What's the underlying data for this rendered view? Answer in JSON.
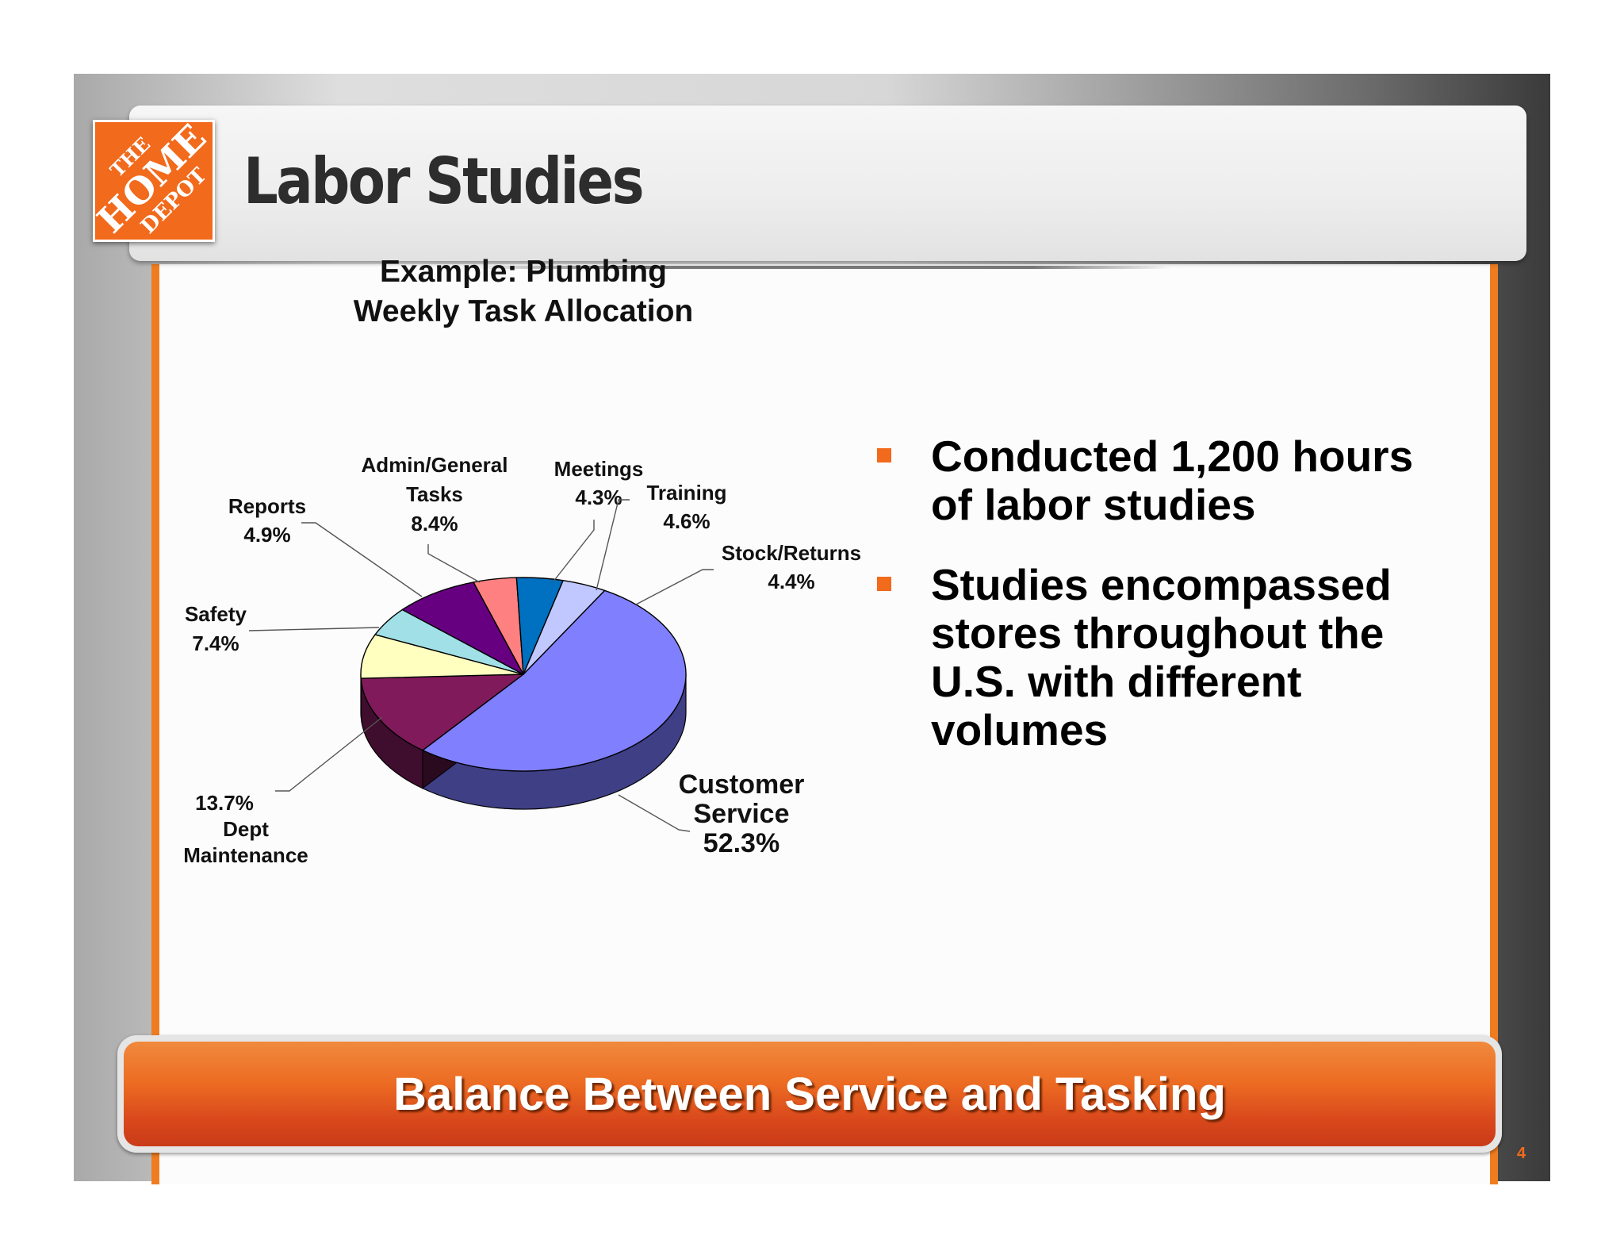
{
  "header": {
    "title": "Labor Studies",
    "logo_text": "THE HOME DEPOT",
    "logo_color": "#f26a1b"
  },
  "chart_data": {
    "type": "pie",
    "title": "Example: Plumbing Weekly Task Allocation",
    "title_lines": [
      "Example: Plumbing",
      "Weekly Task Allocation"
    ],
    "slices": [
      {
        "label": "Customer Service",
        "value": 52.3,
        "value_label": "52.3%",
        "color": "#8080ff",
        "side_color": "#3f3f86"
      },
      {
        "label": "Dept Maintenance",
        "value": 13.7,
        "value_label": "13.7%",
        "color": "#801a5a",
        "side_color": "#3f0d2d"
      },
      {
        "label": "Safety",
        "value": 7.4,
        "value_label": "7.4%",
        "color": "#ffffc0",
        "side_color": "#a3a37a"
      },
      {
        "label": "Reports",
        "value": 4.9,
        "value_label": "4.9%",
        "color": "#a0e0e6",
        "side_color": "#5f8f93"
      },
      {
        "label": "Admin/General Tasks",
        "value": 8.4,
        "value_label": "8.4%",
        "color": "#660080",
        "side_color": "#33003f"
      },
      {
        "label": "Meetings",
        "value": 4.3,
        "value_label": "4.3%",
        "color": "#ff8080",
        "side_color": "#994c4c"
      },
      {
        "label": "Training",
        "value": 4.6,
        "value_label": "4.6%",
        "color": "#0070c0",
        "side_color": "#003a66"
      },
      {
        "label": "Stock/Returns",
        "value": 4.4,
        "value_label": "4.4%",
        "color": "#c0c8ff",
        "side_color": "#7a80a3"
      }
    ],
    "label_lines": {
      "Customer Service": [
        "Customer",
        "Service",
        "52.3%"
      ],
      "Dept Maintenance": [
        "13.7%",
        "Dept",
        "Maintenance"
      ],
      "Safety": [
        "Safety",
        "7.4%"
      ],
      "Reports": [
        "Reports",
        "4.9%"
      ],
      "Admin/General Tasks": [
        "Admin/General",
        "Tasks",
        "8.4%"
      ],
      "Meetings": [
        "Meetings",
        "4.3%"
      ],
      "Training": [
        "Training",
        "4.6%"
      ],
      "Stock/Returns": [
        "Stock/Returns",
        "4.4%"
      ]
    }
  },
  "bullets": [
    {
      "text": "Conducted 1,200 hours of labor studies"
    },
    {
      "text": "Studies encompassed stores throughout the U.S. with different volumes"
    }
  ],
  "banner": {
    "text": "Balance Between Service and Tasking"
  },
  "footer": {
    "page_number": "4"
  },
  "colors": {
    "accent": "#f26a1b",
    "banner": "#d9481c"
  }
}
